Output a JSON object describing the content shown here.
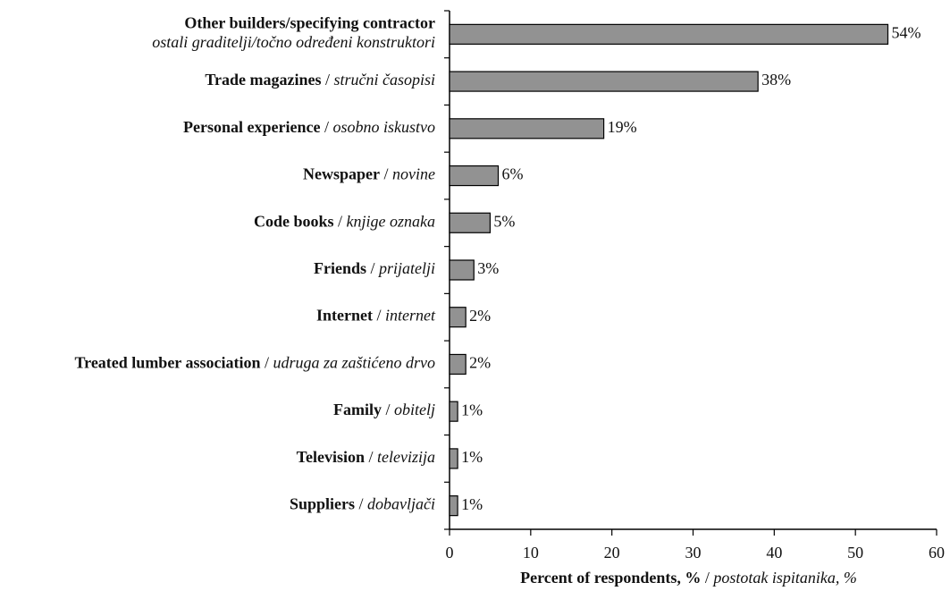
{
  "chart_data": {
    "type": "bar",
    "orientation": "horizontal",
    "categories": [
      {
        "en": "Other builders/specifying contractor",
        "hr": "ostali graditelji/točno određeni konstruktori"
      },
      {
        "en": "Trade magazines",
        "hr": "stručni časopisi"
      },
      {
        "en": "Personal experience",
        "hr": "osobno iskustvo"
      },
      {
        "en": "Newspaper",
        "hr": "novine"
      },
      {
        "en": "Code books",
        "hr": "knjige oznaka"
      },
      {
        "en": "Friends",
        "hr": "prijatelji"
      },
      {
        "en": "Internet",
        "hr": "internet"
      },
      {
        "en": "Treated lumber association",
        "hr": "udruga za zaštićeno drvo"
      },
      {
        "en": "Family",
        "hr": "obitelj"
      },
      {
        "en": "Television",
        "hr": "televizija"
      },
      {
        "en": "Suppliers",
        "hr": "dobavljači"
      }
    ],
    "values": [
      54,
      38,
      19,
      6,
      5,
      3,
      2,
      2,
      1,
      1,
      1
    ],
    "value_labels": [
      "54%",
      "38%",
      "19%",
      "6%",
      "5%",
      "3%",
      "2%",
      "2%",
      "1%",
      "1%",
      "1%"
    ],
    "color": "#929292",
    "x_label": {
      "en": "Percent of respondents, %",
      "hr": "postotak ispitanika, %"
    },
    "xlim": [
      0,
      60
    ],
    "xticks": [
      0,
      10,
      20,
      30,
      40,
      50,
      60
    ],
    "grid": false
  }
}
